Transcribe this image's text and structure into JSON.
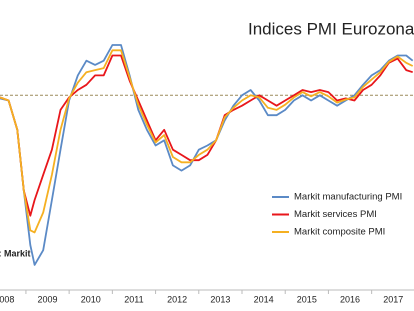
{
  "chart_data": {
    "type": "line",
    "title": "Indices PMI Eurozona",
    "source": "Source: Markit",
    "x": [
      2008.4,
      2008.6,
      2008.8,
      2008.95,
      2009.1,
      2009.2,
      2009.4,
      2009.6,
      2009.8,
      2010.0,
      2010.2,
      2010.4,
      2010.6,
      2010.8,
      2011.0,
      2011.2,
      2011.4,
      2011.6,
      2011.8,
      2012.0,
      2012.2,
      2012.4,
      2012.6,
      2012.8,
      2013.0,
      2013.2,
      2013.4,
      2013.6,
      2013.8,
      2014.0,
      2014.2,
      2014.4,
      2014.6,
      2014.8,
      2015.0,
      2015.2,
      2015.4,
      2015.6,
      2015.8,
      2016.0,
      2016.2,
      2016.4,
      2016.6,
      2016.8,
      2017.0,
      2017.2,
      2017.4,
      2017.6,
      2017.8,
      2017.95
    ],
    "series": [
      {
        "name": "Markit manufacturing PMI",
        "color": "#5b8ac6",
        "values": [
          49.7,
          49.5,
          46.7,
          40.9,
          35.7,
          33.8,
          35.2,
          40.0,
          44.8,
          49.5,
          51.9,
          53.3,
          52.9,
          53.3,
          54.8,
          54.8,
          51.9,
          48.6,
          46.7,
          45.2,
          45.7,
          43.3,
          42.8,
          43.3,
          44.8,
          45.2,
          45.7,
          47.6,
          49.0,
          50.0,
          50.5,
          49.5,
          48.1,
          48.1,
          48.6,
          49.5,
          50.0,
          49.5,
          50.0,
          49.5,
          49.0,
          49.5,
          50.0,
          51.0,
          51.9,
          52.4,
          53.3,
          53.8,
          53.8,
          53.3
        ]
      },
      {
        "name": "Markit services PMI",
        "color": "#e8161b",
        "values": [
          49.8,
          49.5,
          46.7,
          40.9,
          38.5,
          40.0,
          42.4,
          44.8,
          48.6,
          49.8,
          50.5,
          51.0,
          51.9,
          51.9,
          53.8,
          53.8,
          51.4,
          49.5,
          47.6,
          45.7,
          46.7,
          44.8,
          44.3,
          43.8,
          43.8,
          44.3,
          45.7,
          48.1,
          48.6,
          49.0,
          49.5,
          50.0,
          49.5,
          49.0,
          49.5,
          50.0,
          50.5,
          50.3,
          50.5,
          50.3,
          49.5,
          49.7,
          49.5,
          50.5,
          51.0,
          51.9,
          53.1,
          53.5,
          52.4,
          52.2
        ]
      },
      {
        "name": "Markit composite PMI",
        "color": "#f5b021",
        "values": [
          49.8,
          49.5,
          46.7,
          40.9,
          37.1,
          36.9,
          38.8,
          42.4,
          46.7,
          49.7,
          51.2,
          52.2,
          52.4,
          52.6,
          54.3,
          54.3,
          51.7,
          49.1,
          47.2,
          45.5,
          46.2,
          44.1,
          43.6,
          43.6,
          44.3,
          44.8,
          45.7,
          47.9,
          48.8,
          49.5,
          50.0,
          49.8,
          48.8,
          48.6,
          49.1,
          49.8,
          50.3,
          49.9,
          50.3,
          49.9,
          49.3,
          49.6,
          49.8,
          50.8,
          51.5,
          52.2,
          53.2,
          53.7,
          53.1,
          52.8
        ]
      }
    ],
    "xlim": [
      2008.4,
      2017.98
    ],
    "ylim": [
      31.4,
      59.1
    ],
    "xticks": [
      2008,
      2009,
      2010,
      2011,
      2012,
      2013,
      2014,
      2015,
      2016,
      2017
    ],
    "reference_line": 50,
    "reference_color": "#9c8a5a"
  }
}
